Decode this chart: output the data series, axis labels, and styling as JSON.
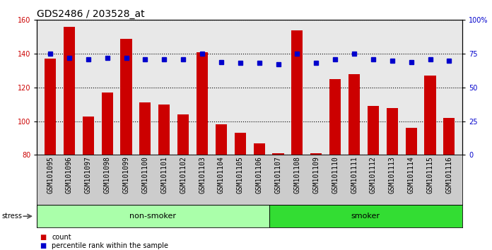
{
  "title": "GDS2486 / 203528_at",
  "samples": [
    "GSM101095",
    "GSM101096",
    "GSM101097",
    "GSM101098",
    "GSM101099",
    "GSM101100",
    "GSM101101",
    "GSM101102",
    "GSM101103",
    "GSM101104",
    "GSM101105",
    "GSM101106",
    "GSM101107",
    "GSM101108",
    "GSM101109",
    "GSM101110",
    "GSM101111",
    "GSM101112",
    "GSM101113",
    "GSM101114",
    "GSM101115",
    "GSM101116"
  ],
  "counts": [
    137,
    156,
    103,
    117,
    149,
    111,
    110,
    104,
    141,
    98,
    93,
    87,
    81,
    154,
    81,
    125,
    128,
    109,
    108,
    96,
    127,
    102
  ],
  "percentile_ranks": [
    75,
    72,
    71,
    72,
    72,
    71,
    71,
    71,
    75,
    69,
    68,
    68,
    67,
    75,
    68,
    71,
    75,
    71,
    70,
    69,
    71,
    70
  ],
  "bar_color": "#cc0000",
  "dot_color": "#0000cc",
  "ylim_left": [
    80,
    160
  ],
  "ylim_right": [
    0,
    100
  ],
  "yticks_left": [
    80,
    100,
    120,
    140,
    160
  ],
  "yticks_right": [
    0,
    25,
    50,
    75,
    100
  ],
  "ytick_labels_right": [
    "0",
    "25",
    "50",
    "75",
    "100%"
  ],
  "group_labels": [
    "non-smoker",
    "smoker"
  ],
  "non_smoker_count": 12,
  "total_count": 22,
  "group_colors": [
    "#aaffaa",
    "#33dd33"
  ],
  "stress_label": "stress",
  "legend_count_label": "count",
  "legend_pct_label": "percentile rank within the sample",
  "plot_bg_color": "#e8e8e8",
  "label_bg_color": "#cccccc",
  "title_fontsize": 10,
  "tick_fontsize": 7,
  "label_fontsize": 7,
  "group_fontsize": 8
}
